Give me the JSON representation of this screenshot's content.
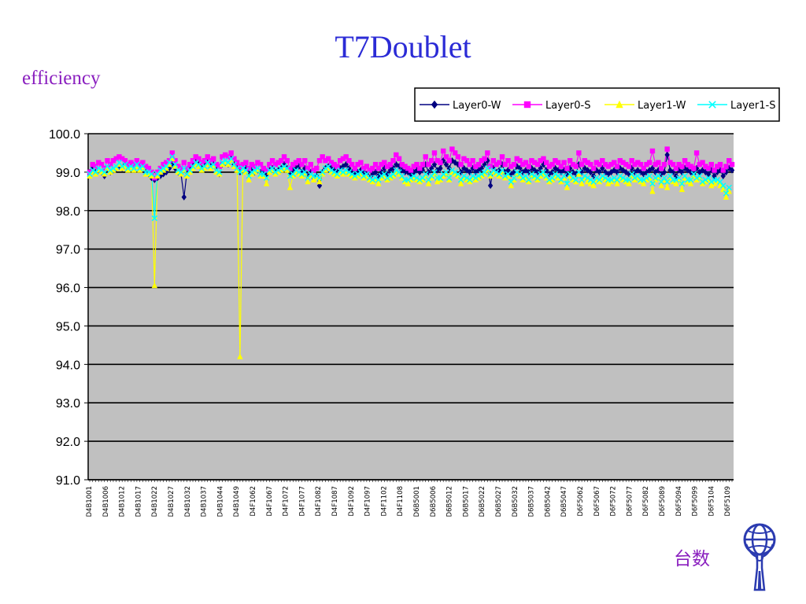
{
  "slide": {
    "title": "T7Doublet",
    "ylabel": "efficiency",
    "xlabel": "台数"
  },
  "colors": {
    "title": "#2b2bd6",
    "label": "#8a1fbf",
    "plot_bg": "#c0c0c0",
    "series": [
      "#000080",
      "#ff00ff",
      "#ffff00",
      "#00ffff"
    ]
  },
  "chart_data": {
    "type": "line",
    "title": "",
    "xlabel": "台数",
    "ylabel": "efficiency",
    "ylim": [
      91.0,
      100.0
    ],
    "yticks": [
      "91.0",
      "92.0",
      "93.0",
      "94.0",
      "95.0",
      "96.0",
      "97.0",
      "98.0",
      "99.0",
      "100.0"
    ],
    "grid": "horizontal",
    "legend_position": "top-right",
    "x_tick_labels": [
      "D4B1001",
      "D4B1006",
      "D4B1012",
      "D4B1017",
      "D4B1022",
      "D4B1027",
      "D4B1032",
      "D4B1037",
      "D4B1044",
      "D4B1049",
      "D4F1062",
      "D4F1067",
      "D4F1072",
      "D4F1077",
      "D4F1082",
      "D4F1087",
      "D4F1092",
      "D4F1097",
      "D4F1102",
      "D4F1108",
      "D6B5001",
      "D6B5006",
      "D6B5012",
      "D6B5017",
      "D6B5022",
      "D6B5027",
      "D6B5032",
      "D6B5037",
      "D6B5042",
      "D6B5047",
      "D6F5062",
      "D6F5067",
      "D6F5072",
      "D6F5077",
      "D6F5082",
      "D6F5089",
      "D6F5094",
      "D6F5099",
      "D6F5104",
      "D6F5109"
    ],
    "series": [
      {
        "name": "Layer0-W",
        "marker": "diamond",
        "values": [
          99.0,
          99.1,
          99.0,
          99.05,
          99.0,
          98.9,
          99.1,
          99.0,
          99.05,
          99.1,
          99.15,
          99.1,
          99.2,
          99.1,
          99.15,
          99.1,
          99.2,
          99.1,
          99.15,
          99.0,
          98.95,
          98.85,
          98.8,
          98.85,
          98.9,
          98.95,
          99.0,
          99.1,
          99.2,
          99.1,
          99.0,
          98.95,
          98.35,
          99.0,
          99.1,
          99.2,
          99.3,
          99.2,
          99.1,
          99.2,
          99.25,
          99.15,
          99.2,
          99.1,
          98.95,
          99.2,
          99.25,
          99.2,
          99.35,
          99.2,
          99.1,
          99.0,
          99.05,
          99.1,
          99.0,
          99.05,
          99.0,
          99.05,
          99.0,
          99.0,
          98.95,
          99.05,
          99.1,
          99.0,
          99.05,
          99.1,
          99.2,
          99.1,
          98.95,
          99.05,
          99.1,
          99.15,
          99.0,
          99.1,
          98.9,
          99.0,
          98.85,
          98.9,
          98.65,
          99.0,
          99.1,
          99.15,
          99.1,
          99.05,
          99.0,
          99.1,
          99.15,
          99.2,
          99.1,
          99.0,
          98.95,
          99.0,
          99.05,
          99.0,
          98.95,
          98.85,
          98.95,
          99.0,
          98.9,
          99.0,
          99.1,
          98.95,
          99.05,
          99.1,
          99.2,
          99.15,
          99.05,
          99.0,
          99.0,
          98.95,
          99.0,
          99.05,
          99.0,
          99.05,
          99.2,
          99.0,
          99.1,
          99.2,
          99.05,
          99.1,
          99.3,
          99.2,
          99.1,
          99.3,
          99.25,
          99.2,
          99.0,
          99.1,
          99.05,
          99.0,
          99.1,
          99.0,
          99.05,
          99.1,
          99.2,
          99.3,
          98.65,
          99.1,
          99.0,
          99.05,
          99.2,
          99.0,
          99.05,
          98.95,
          99.0,
          99.15,
          99.1,
          99.0,
          99.05,
          99.0,
          99.1,
          99.05,
          99.0,
          99.1,
          99.2,
          99.05,
          98.95,
          99.0,
          99.1,
          99.05,
          99.0,
          99.05,
          98.95,
          99.1,
          99.0,
          98.95,
          99.2,
          99.0,
          99.1,
          99.05,
          99.0,
          98.9,
          99.05,
          99.0,
          99.1,
          99.0,
          98.95,
          99.0,
          99.05,
          99.0,
          99.1,
          99.05,
          99.0,
          98.95,
          99.1,
          99.0,
          99.05,
          99.0,
          98.95,
          99.0,
          99.05,
          99.1,
          99.0,
          99.05,
          98.95,
          99.0,
          99.45,
          99.05,
          99.0,
          98.9,
          99.05,
          99.0,
          99.1,
          99.05,
          99.0,
          98.95,
          99.1,
          99.0,
          99.05,
          99.0,
          98.95,
          99.05,
          98.9,
          99.0,
          99.05,
          98.9,
          99.0,
          99.1,
          99.05
        ]
      },
      {
        "name": "Layer0-S",
        "marker": "square",
        "values": [
          99.0,
          99.2,
          99.15,
          99.25,
          99.2,
          99.1,
          99.3,
          99.2,
          99.3,
          99.35,
          99.4,
          99.35,
          99.3,
          99.2,
          99.25,
          99.2,
          99.3,
          99.2,
          99.25,
          99.15,
          99.1,
          99.0,
          98.85,
          99.0,
          99.1,
          99.2,
          99.25,
          99.3,
          99.5,
          99.3,
          99.15,
          99.1,
          99.25,
          99.1,
          99.2,
          99.3,
          99.4,
          99.35,
          99.25,
          99.3,
          99.4,
          99.3,
          99.35,
          99.2,
          99.15,
          99.4,
          99.45,
          99.4,
          99.5,
          99.35,
          99.25,
          99.15,
          99.2,
          99.25,
          99.1,
          99.2,
          99.15,
          99.25,
          99.2,
          99.1,
          99.05,
          99.2,
          99.3,
          99.2,
          99.25,
          99.3,
          99.4,
          99.3,
          99.1,
          99.2,
          99.25,
          99.3,
          99.2,
          99.3,
          99.1,
          99.2,
          99.05,
          99.1,
          99.3,
          99.4,
          99.3,
          99.35,
          99.25,
          99.2,
          99.15,
          99.3,
          99.35,
          99.4,
          99.3,
          99.2,
          99.1,
          99.2,
          99.25,
          99.1,
          99.15,
          99.05,
          99.1,
          99.2,
          99.1,
          99.2,
          99.25,
          99.15,
          99.2,
          99.3,
          99.45,
          99.35,
          99.2,
          99.15,
          99.1,
          99.05,
          99.15,
          99.2,
          99.1,
          99.2,
          99.4,
          99.2,
          99.3,
          99.5,
          99.3,
          99.25,
          99.55,
          99.4,
          99.3,
          99.6,
          99.5,
          99.4,
          99.2,
          99.35,
          99.3,
          99.2,
          99.3,
          99.15,
          99.2,
          99.3,
          99.35,
          99.5,
          99.15,
          99.3,
          99.2,
          99.25,
          99.4,
          99.2,
          99.3,
          99.15,
          99.2,
          99.35,
          99.3,
          99.2,
          99.25,
          99.15,
          99.3,
          99.25,
          99.2,
          99.3,
          99.35,
          99.25,
          99.15,
          99.2,
          99.3,
          99.25,
          99.15,
          99.25,
          99.1,
          99.3,
          99.2,
          99.15,
          99.5,
          99.2,
          99.3,
          99.25,
          99.2,
          99.1,
          99.25,
          99.2,
          99.3,
          99.2,
          99.15,
          99.2,
          99.25,
          99.15,
          99.3,
          99.25,
          99.2,
          99.15,
          99.3,
          99.2,
          99.25,
          99.2,
          99.1,
          99.2,
          99.25,
          99.55,
          99.2,
          99.25,
          99.1,
          99.2,
          99.6,
          99.25,
          99.2,
          99.1,
          99.2,
          99.15,
          99.3,
          99.2,
          99.15,
          99.1,
          99.5,
          99.2,
          99.25,
          99.15,
          99.1,
          99.2,
          99.05,
          99.15,
          99.2,
          99.05,
          99.15,
          99.3,
          99.2
        ]
      },
      {
        "name": "Layer1-W",
        "marker": "triangle",
        "values": [
          98.9,
          99.0,
          98.95,
          99.05,
          99.0,
          98.95,
          99.1,
          99.0,
          99.05,
          99.1,
          99.2,
          99.1,
          99.15,
          99.05,
          99.1,
          99.05,
          99.15,
          99.05,
          99.1,
          98.95,
          98.95,
          98.9,
          96.05,
          98.9,
          99.0,
          99.05,
          99.1,
          99.2,
          99.35,
          99.15,
          99.0,
          98.95,
          99.05,
          98.9,
          99.0,
          99.1,
          99.2,
          99.15,
          99.05,
          99.1,
          99.2,
          99.1,
          99.15,
          99.0,
          98.95,
          99.2,
          99.25,
          99.2,
          99.3,
          99.15,
          99.05,
          94.2,
          99.05,
          99.0,
          98.8,
          98.95,
          99.0,
          99.05,
          98.9,
          98.9,
          98.7,
          99.0,
          99.05,
          98.95,
          99.0,
          99.05,
          99.1,
          99.05,
          98.6,
          98.9,
          99.0,
          98.95,
          98.9,
          98.95,
          98.75,
          98.9,
          98.8,
          98.85,
          98.75,
          98.95,
          99.05,
          99.1,
          99.0,
          98.95,
          98.9,
          99.0,
          98.95,
          99.0,
          98.95,
          98.9,
          98.85,
          98.9,
          98.95,
          98.85,
          98.9,
          98.8,
          98.75,
          98.8,
          98.7,
          98.85,
          98.9,
          98.8,
          98.85,
          98.9,
          99.0,
          98.95,
          98.85,
          98.75,
          98.7,
          98.8,
          98.85,
          98.8,
          98.75,
          98.8,
          98.9,
          98.7,
          98.85,
          98.95,
          98.75,
          98.8,
          98.9,
          98.95,
          98.8,
          99.0,
          98.95,
          98.9,
          98.7,
          98.85,
          98.8,
          98.75,
          98.85,
          98.8,
          98.85,
          98.9,
          98.95,
          99.05,
          98.9,
          99.0,
          98.95,
          98.9,
          99.0,
          98.85,
          98.9,
          98.65,
          98.8,
          98.95,
          98.9,
          98.8,
          98.85,
          98.75,
          98.9,
          98.85,
          98.8,
          98.9,
          98.95,
          98.85,
          98.75,
          98.8,
          98.9,
          98.85,
          98.75,
          98.85,
          98.6,
          98.9,
          98.8,
          98.75,
          98.95,
          98.7,
          98.85,
          98.75,
          98.7,
          98.65,
          98.8,
          98.75,
          98.85,
          98.8,
          98.7,
          98.75,
          98.8,
          98.7,
          98.85,
          98.8,
          98.75,
          98.7,
          98.9,
          98.8,
          98.85,
          98.75,
          98.7,
          98.8,
          98.85,
          98.5,
          98.8,
          98.85,
          98.65,
          98.8,
          98.6,
          98.85,
          98.75,
          98.7,
          98.8,
          98.55,
          98.85,
          98.75,
          98.7,
          98.9,
          98.8,
          98.85,
          98.7,
          98.75,
          98.8,
          98.65,
          98.7,
          98.75,
          98.65,
          98.55,
          98.35,
          98.5
        ]
      },
      {
        "name": "Layer1-S",
        "marker": "x",
        "values": [
          98.95,
          99.05,
          99.0,
          99.1,
          99.05,
          99.0,
          99.15,
          99.05,
          99.1,
          99.15,
          99.25,
          99.15,
          99.2,
          99.1,
          99.15,
          99.1,
          99.2,
          99.1,
          99.15,
          99.0,
          99.0,
          98.95,
          97.8,
          98.95,
          99.05,
          99.1,
          99.15,
          99.25,
          99.4,
          99.2,
          99.05,
          99.0,
          99.1,
          98.95,
          99.05,
          99.15,
          99.25,
          99.2,
          99.1,
          99.15,
          99.25,
          99.15,
          99.2,
          99.05,
          99.0,
          99.25,
          99.3,
          99.25,
          99.35,
          99.2,
          99.1,
          99.0,
          99.1,
          99.05,
          98.9,
          99.0,
          99.05,
          99.1,
          98.95,
          98.95,
          98.85,
          99.05,
          99.1,
          99.0,
          99.05,
          99.1,
          99.15,
          99.1,
          98.9,
          98.95,
          99.05,
          99.0,
          98.95,
          99.0,
          98.85,
          98.95,
          98.9,
          98.9,
          98.85,
          99.0,
          99.1,
          99.15,
          99.05,
          99.0,
          98.95,
          99.05,
          99.0,
          99.05,
          99.0,
          98.95,
          98.9,
          98.95,
          99.0,
          98.9,
          98.95,
          98.85,
          98.8,
          98.85,
          98.8,
          98.9,
          98.95,
          98.85,
          98.9,
          98.95,
          99.05,
          99.0,
          98.9,
          98.8,
          98.8,
          98.85,
          98.9,
          98.85,
          98.8,
          98.85,
          98.95,
          98.8,
          98.9,
          99.0,
          98.85,
          98.85,
          98.95,
          99.0,
          98.85,
          99.05,
          99.0,
          98.95,
          98.8,
          98.9,
          98.85,
          98.8,
          98.9,
          98.85,
          98.9,
          98.95,
          99.0,
          99.1,
          98.95,
          99.05,
          99.0,
          98.95,
          99.05,
          98.9,
          98.95,
          98.75,
          98.85,
          99.0,
          98.95,
          98.85,
          98.9,
          98.8,
          98.95,
          98.9,
          98.85,
          98.95,
          99.0,
          98.9,
          98.8,
          98.85,
          98.95,
          98.9,
          98.8,
          98.9,
          98.7,
          98.95,
          98.85,
          98.8,
          99.0,
          98.8,
          98.9,
          98.85,
          98.8,
          98.75,
          98.85,
          98.8,
          98.9,
          98.85,
          98.8,
          98.8,
          98.85,
          98.8,
          98.9,
          98.85,
          98.8,
          98.8,
          98.95,
          98.85,
          98.9,
          98.8,
          98.8,
          98.85,
          98.9,
          98.7,
          98.85,
          98.9,
          98.75,
          98.85,
          98.75,
          98.9,
          98.8,
          98.8,
          98.85,
          98.7,
          98.9,
          98.8,
          98.8,
          98.95,
          98.85,
          98.9,
          98.75,
          98.8,
          98.85,
          98.75,
          98.8,
          98.8,
          98.75,
          98.65,
          98.45,
          98.6
        ]
      }
    ]
  }
}
